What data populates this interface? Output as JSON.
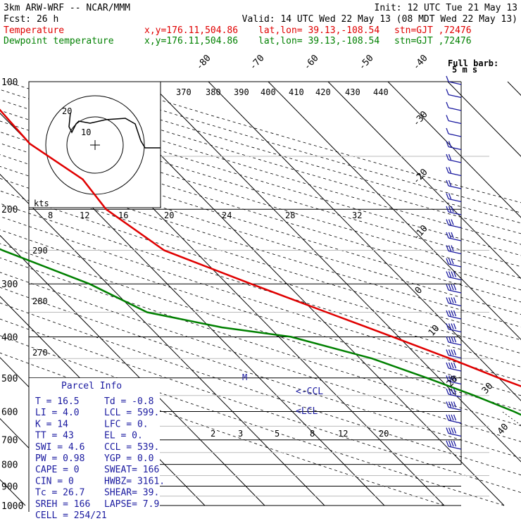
{
  "header": {
    "model": "3km ARW-WRF -- NCAR/MMM",
    "fcst": "Fcst:    26 h",
    "init": "Init: 12 UTC Tue 21 May 13",
    "valid": "Valid: 14 UTC Wed 22 May 13 (08 MDT Wed 22 May 13)",
    "temp_label": "Temperature",
    "dew_label": "Dewpoint temperature",
    "xy": "x,y=176.11,504.86",
    "latlon": "lat,lon= 39.13,-108.54",
    "stn": "stn=GJT ,72476"
  },
  "colors": {
    "temperature": "#e00000",
    "dewpoint": "#008000",
    "wind": "#1a1aa0"
  },
  "barb_legend": {
    "line1": "Full barb:",
    "line2": "5 m s"
  },
  "chart_data": {
    "type": "line",
    "title": "",
    "pressure_levels": [
      "100",
      "200",
      "300",
      "400",
      "500",
      "600",
      "700",
      "800",
      "900",
      "1000"
    ],
    "mixing_ratio_labels": [
      "2",
      "3",
      "5",
      "8",
      "12",
      "20"
    ],
    "isotherm_top_labels": [
      "-80",
      "-70",
      "-60",
      "-50",
      "-40"
    ],
    "isotherm_right_labels": [
      "-30",
      "-20",
      "-10",
      "0",
      "10",
      "20",
      "30",
      "40"
    ],
    "theta_labels": [
      "290",
      "280",
      "270"
    ],
    "thetae_labels": [
      "370",
      "380",
      "390",
      "400",
      "410",
      "420",
      "430",
      "440"
    ],
    "hodograph": {
      "units": "kts",
      "tick_labels": [
        "8",
        "12",
        "16",
        "20",
        "24",
        "28",
        "32"
      ],
      "ring_labels": [
        "20",
        "10"
      ]
    },
    "lcl_labels": [
      "<-CCL",
      "<LCL"
    ],
    "lfc_marker": "M",
    "series": [
      {
        "name": "Temperature",
        "points": [
          {
            "p": 100,
            "t": -49
          },
          {
            "p": 140,
            "t": -50
          },
          {
            "p": 170,
            "t": -47
          },
          {
            "p": 200,
            "t": -48
          },
          {
            "p": 250,
            "t": -45
          },
          {
            "p": 300,
            "t": -36
          },
          {
            "p": 350,
            "t": -28
          },
          {
            "p": 400,
            "t": -21
          },
          {
            "p": 450,
            "t": -15
          },
          {
            "p": 500,
            "t": -10
          },
          {
            "p": 550,
            "t": -5
          },
          {
            "p": 600,
            "t": -1
          },
          {
            "p": 650,
            "t": 4
          },
          {
            "p": 700,
            "t": 7
          },
          {
            "p": 750,
            "t": 11
          },
          {
            "p": 800,
            "t": 15
          },
          {
            "p": 830,
            "t": 16.5
          }
        ]
      },
      {
        "name": "Dewpoint temperature",
        "points": [
          {
            "p": 100,
            "t": -86
          },
          {
            "p": 140,
            "t": -86
          },
          {
            "p": 170,
            "t": -82
          },
          {
            "p": 200,
            "t": -80
          },
          {
            "p": 250,
            "t": -72
          },
          {
            "p": 300,
            "t": -63
          },
          {
            "p": 350,
            "t": -58
          },
          {
            "p": 380,
            "t": -48
          },
          {
            "p": 400,
            "t": -38
          },
          {
            "p": 450,
            "t": -28
          },
          {
            "p": 500,
            "t": -22
          },
          {
            "p": 550,
            "t": -17
          },
          {
            "p": 600,
            "t": -13
          },
          {
            "p": 650,
            "t": -10
          },
          {
            "p": 700,
            "t": -7
          },
          {
            "p": 750,
            "t": -4
          },
          {
            "p": 800,
            "t": -2
          },
          {
            "p": 830,
            "t": -0.8
          }
        ]
      }
    ]
  },
  "parcel_info": {
    "title": "Parcel Info",
    "rows": [
      [
        "T  =    16.5",
        "Td =   -0.8"
      ],
      [
        "LI =     4.0",
        "LCL =  599."
      ],
      [
        "K  =      14",
        "LFC =    0."
      ],
      [
        "TT =      43",
        "EL  =    0."
      ],
      [
        "SWI =    4.6",
        "CCL =  539."
      ],
      [
        "PW =    0.98",
        "YGP =   0.0"
      ],
      [
        "CAPE =     0",
        "SWEAT=  166"
      ],
      [
        "CIN =      0",
        "HWBZ= 3161."
      ],
      [
        "Tc =    26.7",
        "SHEAR=  39."
      ],
      [
        "SREH =   166",
        "LAPSE=  7.9"
      ],
      [
        "CELL = 254/21",
        ""
      ]
    ]
  }
}
